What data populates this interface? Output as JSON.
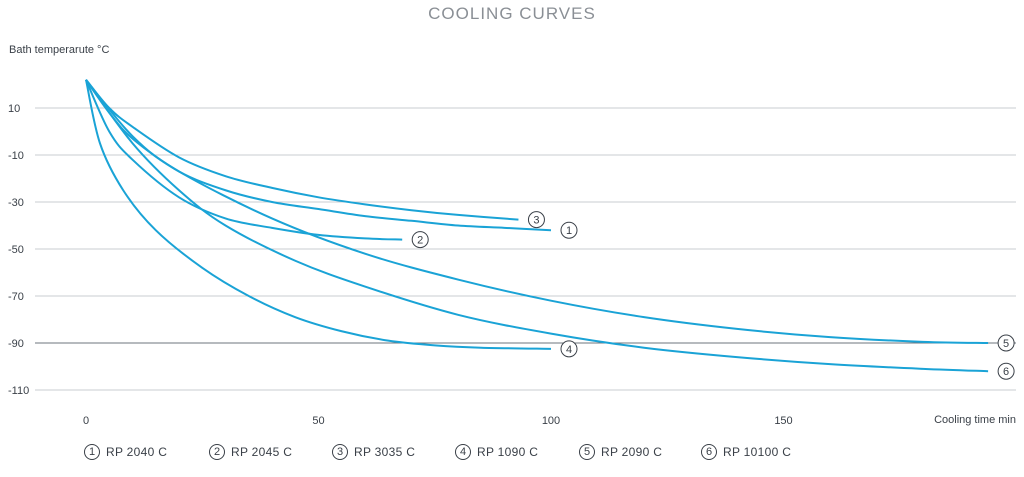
{
  "chart_data": {
    "type": "line",
    "title": "COOLING CURVES",
    "ylabel": "Bath temperarute °C",
    "xlabel": "Cooling time min",
    "xlim": [
      0,
      200
    ],
    "ylim": [
      -112,
      25
    ],
    "x_ticks": [
      0,
      50,
      100,
      150
    ],
    "y_ticks": [
      10,
      -10,
      -30,
      -50,
      -70,
      -90,
      -110
    ],
    "grid": "horizontal",
    "line_color": "#1aa3d6",
    "series": [
      {
        "name": "RP 2040 C",
        "marker_label": "1",
        "values": [
          [
            0,
            22
          ],
          [
            5,
            8
          ],
          [
            10,
            -3
          ],
          [
            20,
            -17
          ],
          [
            30,
            -25
          ],
          [
            40,
            -30
          ],
          [
            50,
            -33
          ],
          [
            60,
            -36
          ],
          [
            70,
            -38
          ],
          [
            80,
            -40
          ],
          [
            90,
            -41
          ],
          [
            100,
            -42
          ]
        ]
      },
      {
        "name": "RP 2045 C",
        "marker_label": "2",
        "values": [
          [
            0,
            22
          ],
          [
            5,
            0
          ],
          [
            10,
            -12
          ],
          [
            20,
            -28
          ],
          [
            30,
            -37
          ],
          [
            40,
            -41
          ],
          [
            50,
            -44
          ],
          [
            60,
            -45.5
          ],
          [
            68,
            -46
          ]
        ]
      },
      {
        "name": "RP 3035 C",
        "marker_label": "3",
        "values": [
          [
            0,
            22
          ],
          [
            5,
            10
          ],
          [
            10,
            2
          ],
          [
            20,
            -11
          ],
          [
            30,
            -19
          ],
          [
            40,
            -24
          ],
          [
            50,
            -28
          ],
          [
            60,
            -31
          ],
          [
            70,
            -33.5
          ],
          [
            80,
            -35.5
          ],
          [
            93,
            -37.5
          ]
        ]
      },
      {
        "name": "RP 1090 C",
        "marker_label": "4",
        "values": [
          [
            0,
            22
          ],
          [
            3,
            -5
          ],
          [
            8,
            -25
          ],
          [
            15,
            -42
          ],
          [
            25,
            -58
          ],
          [
            35,
            -70
          ],
          [
            45,
            -79
          ],
          [
            55,
            -85
          ],
          [
            65,
            -89
          ],
          [
            75,
            -91
          ],
          [
            85,
            -92
          ],
          [
            100,
            -92.5
          ]
        ]
      },
      {
        "name": "RP 2090 C",
        "marker_label": "5",
        "values": [
          [
            0,
            22
          ],
          [
            10,
            -2
          ],
          [
            20,
            -17
          ],
          [
            40,
            -37
          ],
          [
            60,
            -52
          ],
          [
            80,
            -63
          ],
          [
            100,
            -72
          ],
          [
            120,
            -79
          ],
          [
            140,
            -84
          ],
          [
            160,
            -87.5
          ],
          [
            180,
            -89.5
          ],
          [
            194,
            -90
          ]
        ]
      },
      {
        "name": "RP 10100 C",
        "marker_label": "6",
        "values": [
          [
            0,
            22
          ],
          [
            10,
            -5
          ],
          [
            20,
            -25
          ],
          [
            30,
            -40
          ],
          [
            45,
            -55
          ],
          [
            60,
            -66
          ],
          [
            80,
            -78
          ],
          [
            100,
            -86
          ],
          [
            120,
            -92
          ],
          [
            140,
            -96
          ],
          [
            160,
            -99
          ],
          [
            180,
            -101
          ],
          [
            194,
            -102
          ]
        ]
      }
    ]
  }
}
